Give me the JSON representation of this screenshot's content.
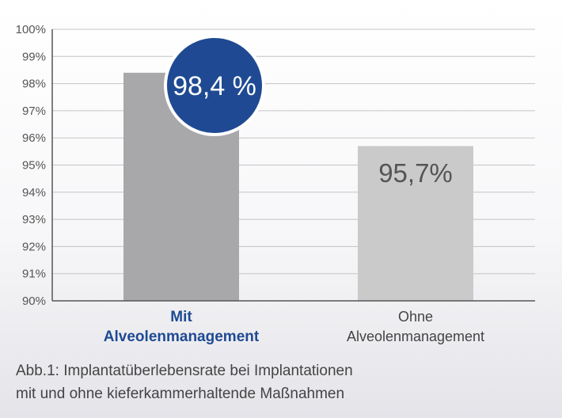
{
  "chart_data": {
    "type": "bar",
    "categories": [
      [
        "Mit",
        "Alveolenmanagement"
      ],
      [
        "Ohne",
        "Alveolenmanagement"
      ]
    ],
    "values": [
      98.4,
      95.7
    ],
    "value_labels": [
      "98,4 %",
      "95,7%"
    ],
    "ylim": [
      90,
      100
    ],
    "yticks": [
      90,
      91,
      92,
      93,
      94,
      95,
      96,
      97,
      98,
      99,
      100
    ],
    "ytick_labels": [
      "90%",
      "91%",
      "92%",
      "93%",
      "94%",
      "95%",
      "96%",
      "97%",
      "98%",
      "99%",
      "100%"
    ],
    "grid": true,
    "highlight_index": 0,
    "colors": {
      "bar_highlight": "#a8a8aa",
      "bar_normal": "#cacaca",
      "badge": "#1f4a93",
      "badge_border": "#ffffff",
      "grid": "#c4c4c4",
      "axis": "#555555"
    }
  },
  "caption": {
    "line1": "Abb.1: Implantatüberlebensrate bei Implantationen",
    "line2": "mit und ohne kieferkammerhaltende Maßnahmen"
  }
}
